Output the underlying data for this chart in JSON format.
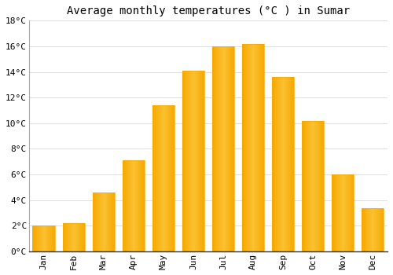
{
  "title": "Average monthly temperatures (°C ) in Sumar",
  "months": [
    "Jan",
    "Feb",
    "Mar",
    "Apr",
    "May",
    "Jun",
    "Jul",
    "Aug",
    "Sep",
    "Oct",
    "Nov",
    "Dec"
  ],
  "values": [
    2.0,
    2.2,
    4.6,
    7.1,
    11.4,
    14.1,
    16.0,
    16.2,
    13.6,
    10.2,
    6.0,
    3.4
  ],
  "bar_color_light": "#FFD050",
  "bar_color_dark": "#F5A800",
  "background_color": "#FFFFFF",
  "grid_color": "#DDDDDD",
  "ylim": [
    0,
    18
  ],
  "yticks": [
    0,
    2,
    4,
    6,
    8,
    10,
    12,
    14,
    16,
    18
  ],
  "title_fontsize": 10,
  "tick_fontsize": 8,
  "font_family": "monospace"
}
